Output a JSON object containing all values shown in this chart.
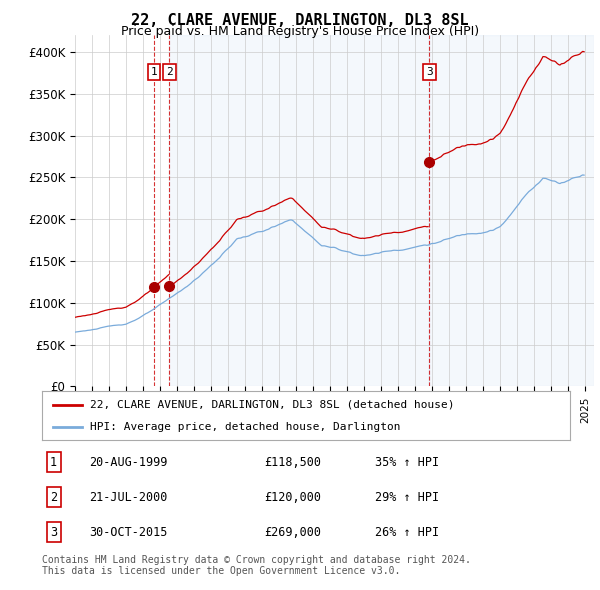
{
  "title": "22, CLARE AVENUE, DARLINGTON, DL3 8SL",
  "subtitle": "Price paid vs. HM Land Registry's House Price Index (HPI)",
  "ylim": [
    0,
    420000
  ],
  "yticks": [
    0,
    50000,
    100000,
    150000,
    200000,
    250000,
    300000,
    350000,
    400000
  ],
  "ytick_labels": [
    "£0",
    "£50K",
    "£100K",
    "£150K",
    "£200K",
    "£250K",
    "£300K",
    "£350K",
    "£400K"
  ],
  "hpi_color": "#7aabdb",
  "price_color": "#cc0000",
  "shade_color": "#ddeeff",
  "marker_color": "#aa0000",
  "purchase_markers": [
    {
      "date_num": 1999.64,
      "price": 118500,
      "label": "1"
    },
    {
      "date_num": 2000.55,
      "price": 120000,
      "label": "2"
    },
    {
      "date_num": 2015.83,
      "price": 269000,
      "label": "3"
    }
  ],
  "vline_dates": [
    1999.64,
    2000.55,
    2015.83
  ],
  "legend_entries": [
    {
      "label": "22, CLARE AVENUE, DARLINGTON, DL3 8SL (detached house)",
      "color": "#cc0000"
    },
    {
      "label": "HPI: Average price, detached house, Darlington",
      "color": "#7aabdb"
    }
  ],
  "table_rows": [
    {
      "num": "1",
      "date": "20-AUG-1999",
      "price": "£118,500",
      "hpi": "35% ↑ HPI"
    },
    {
      "num": "2",
      "date": "21-JUL-2000",
      "price": "£120,000",
      "hpi": "29% ↑ HPI"
    },
    {
      "num": "3",
      "date": "30-OCT-2015",
      "price": "£269,000",
      "hpi": "26% ↑ HPI"
    }
  ],
  "footnote": "Contains HM Land Registry data © Crown copyright and database right 2024.\nThis data is licensed under the Open Government Licence v3.0.",
  "bg_color": "#ffffff",
  "grid_color": "#cccccc",
  "title_fontsize": 11,
  "subtitle_fontsize": 9.5,
  "tick_fontsize": 8.5,
  "xstart": 1995.0,
  "xend": 2025.5
}
